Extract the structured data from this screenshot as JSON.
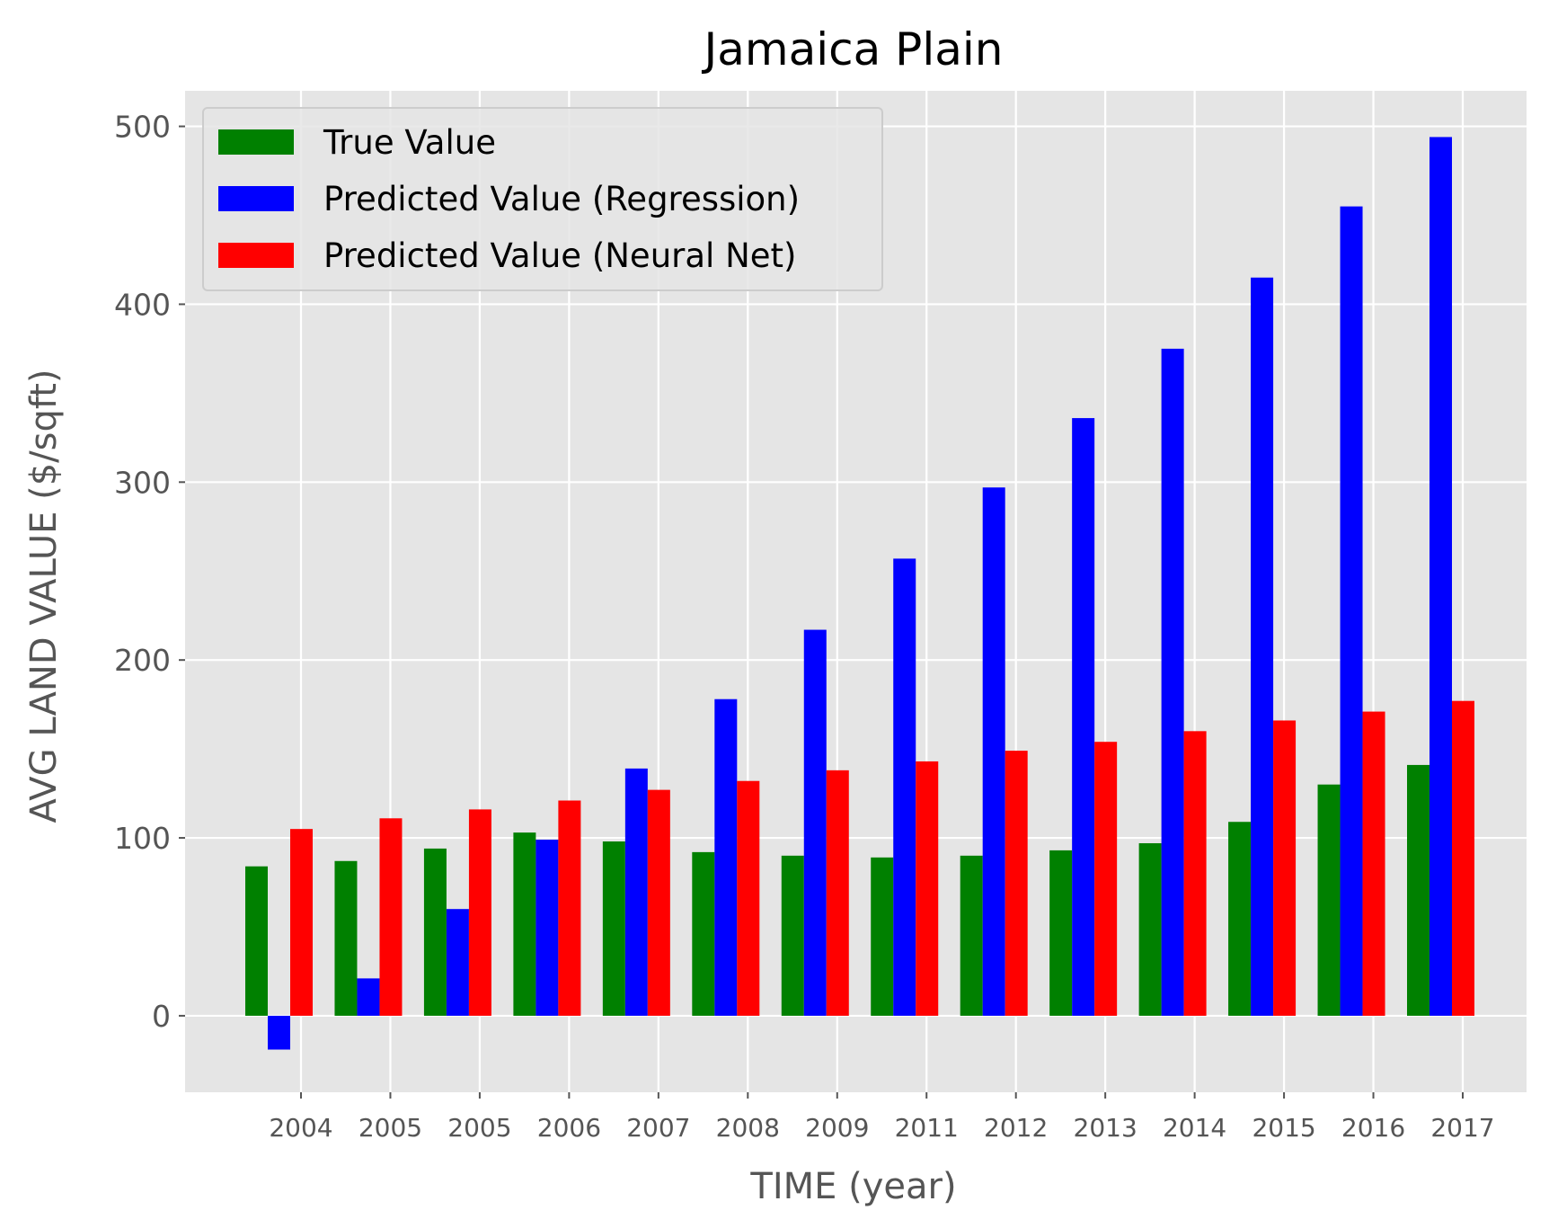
{
  "chart_data": {
    "type": "bar",
    "title": "Jamaica Plain",
    "xlabel": "TIME (year)",
    "ylabel": "AVG LAND VALUE ($/sqft)",
    "ylim": [
      -43,
      520
    ],
    "yticks": [
      0,
      100,
      200,
      300,
      400,
      500
    ],
    "grid": true,
    "legend_position": "upper-left",
    "categories": [
      "2004",
      "2005",
      "2005",
      "2006",
      "2007",
      "2008",
      "2009",
      "2011",
      "2012",
      "2013",
      "2014",
      "2015",
      "2016",
      "2017"
    ],
    "series": [
      {
        "name": "True Value",
        "color": "#008000",
        "values": [
          84,
          87,
          94,
          103,
          98,
          92,
          90,
          89,
          90,
          93,
          97,
          109,
          130,
          141
        ]
      },
      {
        "name": "Predicted Value (Regression)",
        "color": "#0000ff",
        "values": [
          -19,
          21,
          60,
          99,
          139,
          178,
          217,
          257,
          297,
          336,
          375,
          415,
          455,
          494
        ]
      },
      {
        "name": "Predicted Value (Neural Net)",
        "color": "#ff0000",
        "values": [
          105,
          111,
          116,
          121,
          127,
          132,
          138,
          143,
          149,
          154,
          160,
          166,
          171,
          177
        ]
      }
    ]
  }
}
